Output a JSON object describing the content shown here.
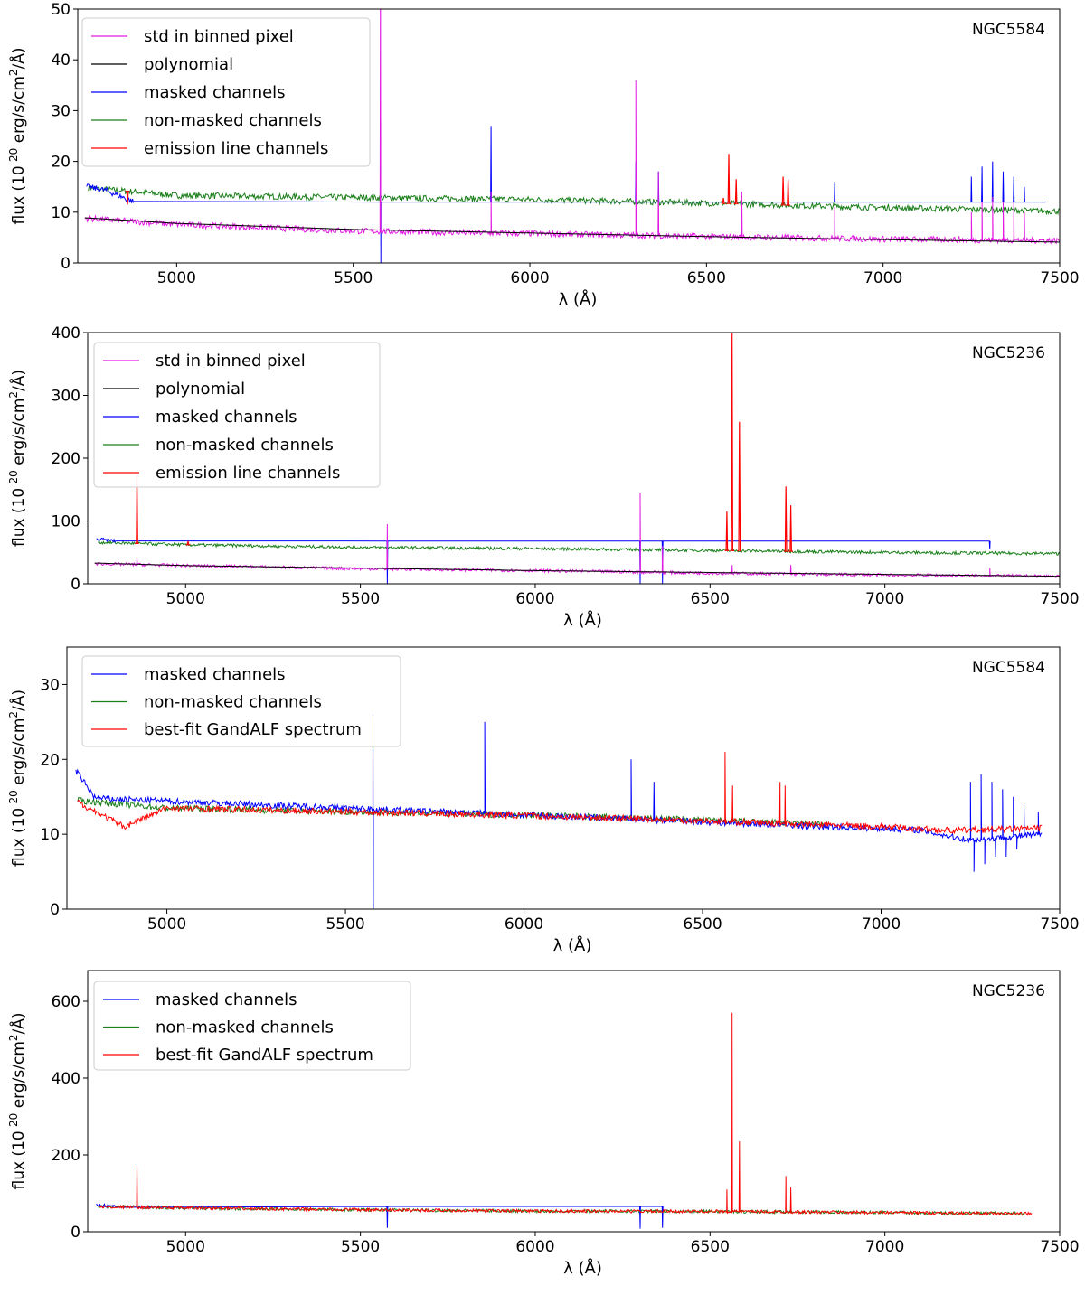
{
  "chart_data": [
    {
      "type": "line",
      "galaxy": "NGC5584",
      "xlabel": "λ (Å)",
      "ylabel": "flux (10^-20 erg/s/cm^2/Å)",
      "xlim": [
        4720,
        7500
      ],
      "ylim": [
        0,
        50
      ],
      "xticks": [
        5000,
        5500,
        6000,
        6500,
        7000,
        7500
      ],
      "yticks": [
        0,
        10,
        20,
        30,
        40,
        50
      ],
      "legend_position": "top-left",
      "legend": [
        "std in binned pixel",
        "polynomial",
        "masked channels",
        "non-masked channels",
        "emission line channels"
      ],
      "series": [
        {
          "name": "std in binned pixel",
          "color": "#e21ae2",
          "base": [
            [
              4740,
              8.8
            ],
            [
              5000,
              7.6
            ],
            [
              5500,
              6.3
            ],
            [
              6000,
              5.8
            ],
            [
              6500,
              5.2
            ],
            [
              7000,
              4.7
            ],
            [
              7500,
              4.4
            ]
          ],
          "spikes": [
            [
              5577,
              62
            ],
            [
              5890,
              14
            ],
            [
              6300,
              36
            ],
            [
              6364,
              18
            ],
            [
              6600,
              14
            ],
            [
              6863,
              11
            ],
            [
              7250,
              10
            ],
            [
              7280,
              12
            ],
            [
              7310,
              13
            ],
            [
              7340,
              12
            ],
            [
              7370,
              12
            ],
            [
              7400,
              10
            ]
          ]
        },
        {
          "name": "polynomial",
          "color": "#000000",
          "base": [
            [
              4740,
              8.9
            ],
            [
              5000,
              7.8
            ],
            [
              5500,
              6.6
            ],
            [
              6000,
              5.9
            ],
            [
              6500,
              5.2
            ],
            [
              7000,
              4.6
            ],
            [
              7500,
              4.1
            ]
          ]
        },
        {
          "name": "masked channels",
          "color": "#0000ff",
          "base": [
            [
              4745,
              15.0
            ],
            [
              4800,
              14.3
            ],
            [
              4880,
              12.0
            ]
          ],
          "spikes": [
            [
              5577,
              28
            ],
            [
              5578,
              0
            ],
            [
              5890,
              27
            ],
            [
              6300,
              20
            ],
            [
              6364,
              18
            ],
            [
              6863,
              16
            ],
            [
              7250,
              17
            ],
            [
              7280,
              19
            ],
            [
              7310,
              20
            ],
            [
              7340,
              18
            ],
            [
              7370,
              17
            ],
            [
              7400,
              15
            ],
            [
              7460,
              12
            ]
          ]
        },
        {
          "name": "non-masked channels",
          "color": "#1a7f1a",
          "base": [
            [
              4750,
              14.8
            ],
            [
              5000,
              13.3
            ],
            [
              5500,
              12.9
            ],
            [
              6000,
              12.5
            ],
            [
              6500,
              11.8
            ],
            [
              7000,
              10.9
            ],
            [
              7500,
              10.2
            ]
          ]
        },
        {
          "name": "emission line channels",
          "color": "#ff0000",
          "base": [
            [
              4861,
              11.5
            ],
            [
              6548,
              12.8
            ],
            [
              6563,
              21.5
            ],
            [
              6584,
              16.5
            ],
            [
              6717,
              17.0
            ],
            [
              6731,
              16.5
            ]
          ]
        }
      ]
    },
    {
      "type": "line",
      "galaxy": "NGC5236",
      "xlabel": "λ (Å)",
      "ylabel": "flux (10^-20 erg/s/cm^2/Å)",
      "xlim": [
        4720,
        7500
      ],
      "ylim": [
        0,
        400
      ],
      "xticks": [
        5000,
        5500,
        6000,
        6500,
        7000,
        7500
      ],
      "yticks": [
        0,
        100,
        200,
        300,
        400
      ],
      "legend_position": "top-left",
      "legend": [
        "std in binned pixel",
        "polynomial",
        "masked channels",
        "non-masked channels",
        "emission line channels"
      ],
      "series": [
        {
          "name": "std in binned pixel",
          "color": "#e21ae2",
          "base": [
            [
              4740,
              32
            ],
            [
              5000,
              29
            ],
            [
              5500,
              24
            ],
            [
              6000,
              21
            ],
            [
              6500,
              17
            ],
            [
              7000,
              14
            ],
            [
              7500,
              12
            ]
          ],
          "spikes": [
            [
              4861,
              40
            ],
            [
              5577,
              95
            ],
            [
              6300,
              145
            ],
            [
              6364,
              60
            ],
            [
              6563,
              30
            ],
            [
              6731,
              30
            ],
            [
              7300,
              25
            ]
          ]
        },
        {
          "name": "polynomial",
          "color": "#000000",
          "base": [
            [
              4740,
              33
            ],
            [
              5000,
              29
            ],
            [
              5500,
              25
            ],
            [
              6000,
              21
            ],
            [
              6500,
              18
            ],
            [
              7000,
              15
            ],
            [
              7500,
              12
            ]
          ]
        },
        {
          "name": "masked channels",
          "color": "#0000ff",
          "base": [
            [
              4745,
              72
            ],
            [
              4800,
              68
            ]
          ],
          "spikes": [
            [
              5577,
              0
            ],
            [
              5890,
              68
            ],
            [
              6300,
              0
            ],
            [
              6364,
              0
            ],
            [
              7300,
              55
            ]
          ]
        },
        {
          "name": "non-masked channels",
          "color": "#1a7f1a",
          "base": [
            [
              4750,
              66
            ],
            [
              5000,
              62
            ],
            [
              5500,
              58
            ],
            [
              6000,
              56
            ],
            [
              6500,
              53
            ],
            [
              7000,
              50
            ],
            [
              7500,
              48
            ]
          ]
        },
        {
          "name": "emission line channels",
          "color": "#ff0000",
          "base": [
            [
              4861,
              172
            ],
            [
              5007,
              68
            ],
            [
              6548,
              115
            ],
            [
              6563,
              400
            ],
            [
              6584,
              258
            ],
            [
              6717,
              155
            ],
            [
              6731,
              125
            ]
          ]
        }
      ]
    },
    {
      "type": "line",
      "galaxy": "NGC5584",
      "xlabel": "λ (Å)",
      "ylabel": "flux (10^-20 erg/s/cm^2/Å)",
      "xlim": [
        4720,
        7500
      ],
      "ylim": [
        0,
        35
      ],
      "xticks": [
        5000,
        5500,
        6000,
        6500,
        7000,
        7500
      ],
      "yticks": [
        0,
        10,
        20,
        30
      ],
      "legend_position": "top-left",
      "legend": [
        "masked channels",
        "non-masked channels",
        "best-fit GandALF spectrum"
      ],
      "series": [
        {
          "name": "masked channels",
          "color": "#0000ff",
          "base": [
            [
              4745,
              18.5
            ],
            [
              4800,
              14.8
            ],
            [
              6850,
              11.0
            ],
            [
              7100,
              10.6
            ],
            [
              7250,
              9.2
            ],
            [
              7450,
              10.0
            ]
          ],
          "spikes": [
            [
              5577,
              26
            ],
            [
              5578,
              0
            ],
            [
              5890,
              25
            ],
            [
              6300,
              20
            ],
            [
              6364,
              17
            ],
            [
              7250,
              17
            ],
            [
              7280,
              18
            ],
            [
              7310,
              17
            ],
            [
              7340,
              16
            ],
            [
              7370,
              15
            ],
            [
              7400,
              14
            ],
            [
              7440,
              13
            ]
          ],
          "dips": [
            [
              7260,
              5
            ],
            [
              7290,
              6
            ],
            [
              7320,
              7
            ],
            [
              7350,
              7
            ],
            [
              7380,
              8
            ]
          ]
        },
        {
          "name": "non-masked channels",
          "color": "#1a7f1a",
          "base": [
            [
              4750,
              14.5
            ],
            [
              5000,
              13.5
            ],
            [
              5500,
              13.0
            ],
            [
              6000,
              12.6
            ],
            [
              6500,
              11.9
            ],
            [
              6850,
              11.3
            ]
          ]
        },
        {
          "name": "best-fit GandALF spectrum",
          "color": "#ff0000",
          "base": [
            [
              4750,
              14.3
            ],
            [
              4880,
              11.0
            ],
            [
              5000,
              13.5
            ],
            [
              5500,
              13.0
            ],
            [
              6000,
              12.5
            ],
            [
              6500,
              11.8
            ],
            [
              7000,
              11.0
            ],
            [
              7200,
              10.5
            ],
            [
              7450,
              10.8
            ]
          ],
          "spikes": [
            [
              6563,
              21
            ],
            [
              6584,
              16.5
            ],
            [
              6717,
              17
            ],
            [
              6731,
              16.5
            ]
          ]
        }
      ]
    },
    {
      "type": "line",
      "galaxy": "NGC5236",
      "xlabel": "λ (Å)",
      "ylabel": "flux (10^-20 erg/s/cm^2/Å)",
      "xlim": [
        4720,
        7500
      ],
      "ylim": [
        0,
        680
      ],
      "xticks": [
        5000,
        5500,
        6000,
        6500,
        7000,
        7500
      ],
      "yticks": [
        0,
        200,
        400,
        600
      ],
      "legend_position": "top-left",
      "legend": [
        "masked channels",
        "non-masked channels",
        "best-fit GandALF spectrum"
      ],
      "series": [
        {
          "name": "masked channels",
          "color": "#0000ff",
          "base": [
            [
              4745,
              70
            ],
            [
              4800,
              66
            ]
          ],
          "spikes": [
            [
              5577,
              10
            ],
            [
              6300,
              8
            ],
            [
              6364,
              10
            ]
          ]
        },
        {
          "name": "non-masked channels",
          "color": "#1a7f1a",
          "base": [
            [
              4750,
              66
            ],
            [
              5000,
              62
            ],
            [
              5500,
              57
            ],
            [
              6000,
              54
            ],
            [
              6500,
              53
            ],
            [
              7000,
              50
            ],
            [
              7400,
              47
            ]
          ]
        },
        {
          "name": "best-fit GandALF spectrum",
          "color": "#ff0000",
          "base": [
            [
              4750,
              65
            ],
            [
              5000,
              62
            ],
            [
              5500,
              57
            ],
            [
              6000,
              54
            ],
            [
              6500,
              53
            ],
            [
              7000,
              50
            ],
            [
              7420,
              47
            ]
          ],
          "spikes": [
            [
              4861,
              175
            ],
            [
              6548,
              110
            ],
            [
              6563,
              570
            ],
            [
              6584,
              235
            ],
            [
              6717,
              145
            ],
            [
              6731,
              115
            ]
          ]
        }
      ]
    }
  ]
}
